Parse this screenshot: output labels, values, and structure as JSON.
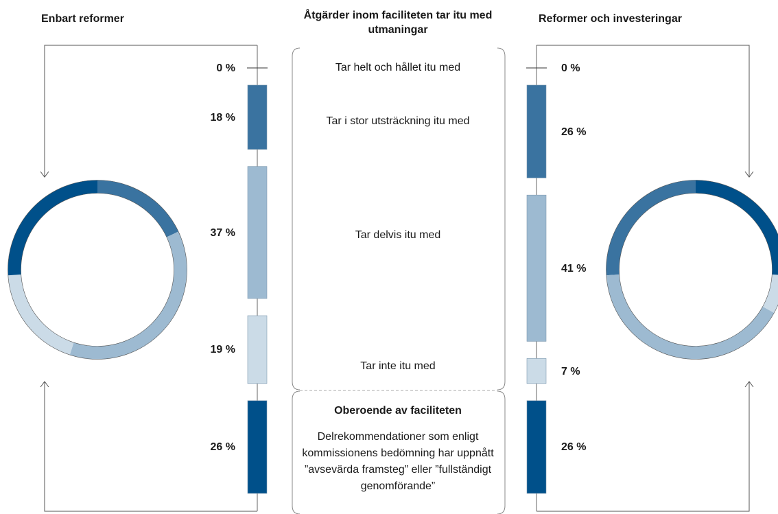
{
  "center": {
    "title": "Åtgärder inom faciliteten tar itu med utmaningar",
    "categories": [
      "Tar helt och hållet itu med",
      "Tar i stor utsträckning itu med",
      "Tar delvis itu med",
      "Tar inte itu med",
      "Oberoende av faciliteten"
    ],
    "note": "Delrekommendationer som enligt kommissionens bedömning har uppnått ”avsevärda framsteg” eller ”fullständigt genomförande”"
  },
  "chart_data": [
    {
      "type": "donut",
      "title": "Enbart reformer",
      "values": [
        0,
        18,
        37,
        19,
        26
      ],
      "value_labels": [
        "0 %",
        "18 %",
        "37 %",
        "19 %",
        "26 %"
      ],
      "colors": [
        "#333333",
        "#3a73a0",
        "#9dbad1",
        "#cbdbe7",
        "#00508a"
      ]
    },
    {
      "type": "donut",
      "title": "Reformer och investeringar",
      "values": [
        0,
        26,
        41,
        7,
        26
      ],
      "value_labels": [
        "0 %",
        "26 %",
        "41 %",
        "7 %",
        "26 %"
      ],
      "colors": [
        "#333333",
        "#3a73a0",
        "#9dbad1",
        "#cbdbe7",
        "#00508a"
      ]
    }
  ]
}
